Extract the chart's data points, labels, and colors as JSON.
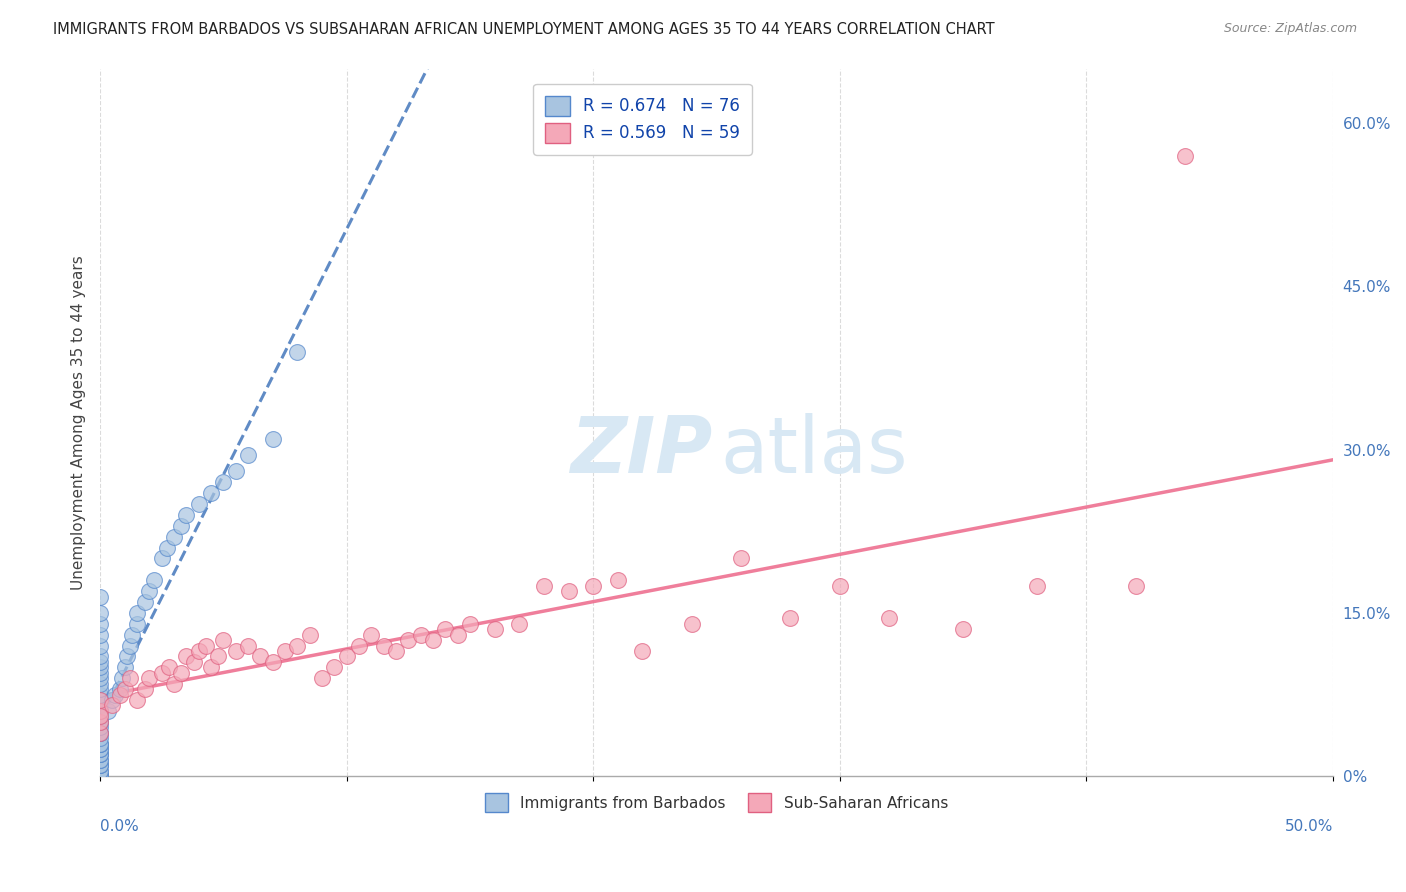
{
  "title": "IMMIGRANTS FROM BARBADOS VS SUBSAHARAN AFRICAN UNEMPLOYMENT AMONG AGES 35 TO 44 YEARS CORRELATION CHART",
  "source": "Source: ZipAtlas.com",
  "ylabel": "Unemployment Among Ages 35 to 44 years",
  "ylabel_right_ticks": [
    "0%",
    "15.0%",
    "30.0%",
    "45.0%",
    "60.0%"
  ],
  "ylabel_right_vals": [
    0,
    0.15,
    0.3,
    0.45,
    0.6
  ],
  "xlim": [
    0,
    0.5
  ],
  "ylim": [
    0,
    0.65
  ],
  "legend_r1": "R = 0.674",
  "legend_n1": "N = 76",
  "legend_r2": "R = 0.569",
  "legend_n2": "N = 59",
  "blue_color": "#A8C4E0",
  "pink_color": "#F4A8B8",
  "blue_edge_color": "#5588CC",
  "pink_edge_color": "#E06080",
  "blue_line_color": "#4477BB",
  "pink_line_color": "#EE7090",
  "blue_x": [
    0.0,
    0.0,
    0.0,
    0.0,
    0.0,
    0.0,
    0.0,
    0.0,
    0.0,
    0.0,
    0.0,
    0.0,
    0.0,
    0.0,
    0.0,
    0.0,
    0.0,
    0.0,
    0.0,
    0.0,
    0.0,
    0.0,
    0.0,
    0.0,
    0.0,
    0.0,
    0.0,
    0.0,
    0.0,
    0.0,
    0.0,
    0.0,
    0.0,
    0.0,
    0.0,
    0.0,
    0.0,
    0.0,
    0.0,
    0.0,
    0.0,
    0.0,
    0.0,
    0.0,
    0.0,
    0.0,
    0.0,
    0.0,
    0.0,
    0.0,
    0.003,
    0.005,
    0.006,
    0.008,
    0.009,
    0.01,
    0.011,
    0.012,
    0.013,
    0.015,
    0.015,
    0.018,
    0.02,
    0.022,
    0.025,
    0.027,
    0.03,
    0.033,
    0.035,
    0.04,
    0.045,
    0.05,
    0.055,
    0.06,
    0.07,
    0.08
  ],
  "blue_y": [
    0.0,
    0.0,
    0.0,
    0.0,
    0.0,
    0.0,
    0.0,
    0.0,
    0.0,
    0.0,
    0.005,
    0.005,
    0.01,
    0.01,
    0.01,
    0.015,
    0.015,
    0.02,
    0.02,
    0.02,
    0.025,
    0.025,
    0.03,
    0.03,
    0.03,
    0.035,
    0.04,
    0.04,
    0.045,
    0.05,
    0.05,
    0.055,
    0.06,
    0.06,
    0.065,
    0.07,
    0.07,
    0.075,
    0.08,
    0.085,
    0.09,
    0.095,
    0.1,
    0.105,
    0.11,
    0.12,
    0.13,
    0.14,
    0.15,
    0.165,
    0.06,
    0.07,
    0.075,
    0.08,
    0.09,
    0.1,
    0.11,
    0.12,
    0.13,
    0.14,
    0.15,
    0.16,
    0.17,
    0.18,
    0.2,
    0.21,
    0.22,
    0.23,
    0.24,
    0.25,
    0.26,
    0.27,
    0.28,
    0.295,
    0.31,
    0.39
  ],
  "pink_x": [
    0.0,
    0.0,
    0.0,
    0.0,
    0.0,
    0.005,
    0.008,
    0.01,
    0.012,
    0.015,
    0.018,
    0.02,
    0.025,
    0.028,
    0.03,
    0.033,
    0.035,
    0.038,
    0.04,
    0.043,
    0.045,
    0.048,
    0.05,
    0.055,
    0.06,
    0.065,
    0.07,
    0.075,
    0.08,
    0.085,
    0.09,
    0.095,
    0.1,
    0.105,
    0.11,
    0.115,
    0.12,
    0.125,
    0.13,
    0.135,
    0.14,
    0.145,
    0.15,
    0.16,
    0.17,
    0.18,
    0.19,
    0.2,
    0.21,
    0.22,
    0.24,
    0.26,
    0.28,
    0.3,
    0.32,
    0.35,
    0.38,
    0.42,
    0.44
  ],
  "pink_y": [
    0.04,
    0.05,
    0.06,
    0.07,
    0.055,
    0.065,
    0.075,
    0.08,
    0.09,
    0.07,
    0.08,
    0.09,
    0.095,
    0.1,
    0.085,
    0.095,
    0.11,
    0.105,
    0.115,
    0.12,
    0.1,
    0.11,
    0.125,
    0.115,
    0.12,
    0.11,
    0.105,
    0.115,
    0.12,
    0.13,
    0.09,
    0.1,
    0.11,
    0.12,
    0.13,
    0.12,
    0.115,
    0.125,
    0.13,
    0.125,
    0.135,
    0.13,
    0.14,
    0.135,
    0.14,
    0.175,
    0.17,
    0.175,
    0.18,
    0.115,
    0.14,
    0.2,
    0.145,
    0.175,
    0.145,
    0.135,
    0.175,
    0.175,
    0.57
  ]
}
